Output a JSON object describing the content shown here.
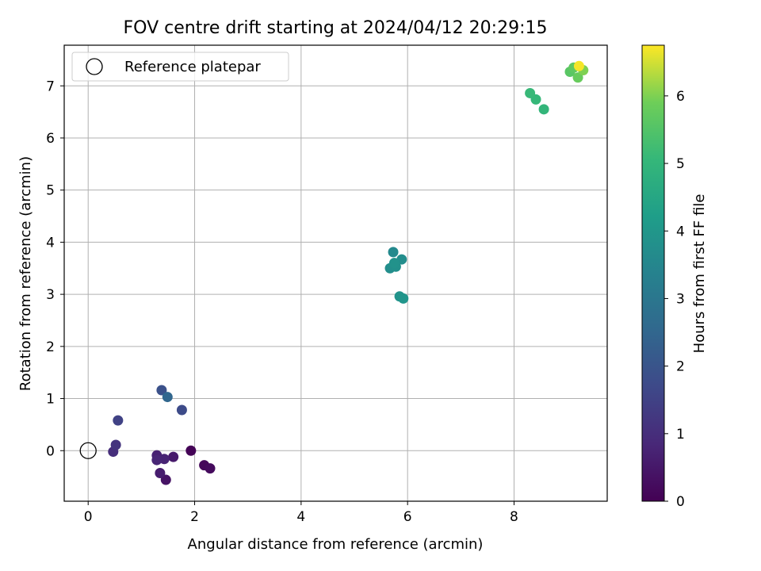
{
  "chart_data": {
    "type": "scatter",
    "title": "FOV centre drift starting at 2024/04/12 20:29:15",
    "xlabel": "Angular distance from reference (arcmin)",
    "ylabel": "Rotation from reference (arcmin)",
    "xlim": [
      -0.45,
      9.75
    ],
    "ylim": [
      -0.97,
      7.78
    ],
    "xticks": [
      0,
      2,
      4,
      6,
      8
    ],
    "yticks": [
      0,
      1,
      2,
      3,
      4,
      5,
      6,
      7
    ],
    "grid": true,
    "legend": {
      "position": "top-left",
      "entries": [
        "Reference platepar"
      ]
    },
    "reference_point": {
      "x": 0,
      "y": 0
    },
    "colorbar": {
      "label": "Hours from first FF file",
      "range": [
        0,
        6.75
      ],
      "ticks": [
        0,
        1,
        2,
        3,
        4,
        5,
        6
      ],
      "colormap": "viridis"
    },
    "points": [
      {
        "x": 1.93,
        "y": 0.0,
        "hours": 0.05
      },
      {
        "x": 2.18,
        "y": -0.28,
        "hours": 0.15
      },
      {
        "x": 2.29,
        "y": -0.34,
        "hours": 0.2
      },
      {
        "x": 1.46,
        "y": -0.56,
        "hours": 0.4
      },
      {
        "x": 1.6,
        "y": -0.12,
        "hours": 0.55
      },
      {
        "x": 1.35,
        "y": -0.43,
        "hours": 0.6
      },
      {
        "x": 1.29,
        "y": -0.09,
        "hours": 0.7
      },
      {
        "x": 1.43,
        "y": -0.16,
        "hours": 0.75
      },
      {
        "x": 1.29,
        "y": -0.18,
        "hours": 0.8
      },
      {
        "x": 0.47,
        "y": -0.02,
        "hours": 1.0
      },
      {
        "x": 0.52,
        "y": 0.11,
        "hours": 1.15
      },
      {
        "x": 0.56,
        "y": 0.58,
        "hours": 1.5
      },
      {
        "x": 1.76,
        "y": 0.78,
        "hours": 1.75
      },
      {
        "x": 1.38,
        "y": 1.16,
        "hours": 1.9
      },
      {
        "x": 1.49,
        "y": 1.03,
        "hours": 2.5
      },
      {
        "x": 5.73,
        "y": 3.81,
        "hours": 3.6
      },
      {
        "x": 5.89,
        "y": 3.67,
        "hours": 3.7
      },
      {
        "x": 5.67,
        "y": 3.5,
        "hours": 3.75
      },
      {
        "x": 5.78,
        "y": 3.53,
        "hours": 3.8
      },
      {
        "x": 5.75,
        "y": 3.6,
        "hours": 3.85
      },
      {
        "x": 5.85,
        "y": 2.96,
        "hours": 3.9
      },
      {
        "x": 5.92,
        "y": 2.92,
        "hours": 3.95
      },
      {
        "x": 8.56,
        "y": 6.55,
        "hours": 5.0
      },
      {
        "x": 8.41,
        "y": 6.74,
        "hours": 5.05
      },
      {
        "x": 8.3,
        "y": 6.86,
        "hours": 5.1
      },
      {
        "x": 9.05,
        "y": 7.27,
        "hours": 5.6
      },
      {
        "x": 9.12,
        "y": 7.35,
        "hours": 5.7
      },
      {
        "x": 9.2,
        "y": 7.16,
        "hours": 5.8
      },
      {
        "x": 9.3,
        "y": 7.3,
        "hours": 6.0
      },
      {
        "x": 9.22,
        "y": 7.38,
        "hours": 6.7
      }
    ]
  }
}
